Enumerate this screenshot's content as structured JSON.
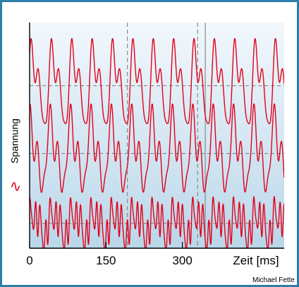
{
  "chart_data": {
    "type": "line",
    "title": "",
    "xlabel": "Zeit [ms]",
    "ylabel": "Spannung",
    "xlim": [
      0,
      500
    ],
    "x_ticks": [
      0,
      150,
      300
    ],
    "x_tick_labels": [
      "0",
      "150",
      "300"
    ],
    "grid": false,
    "legend": "none",
    "markers": {
      "dashed_x": [
        192,
        330
      ],
      "solid_x": [
        345
      ]
    },
    "series": [
      {
        "baseline": 0.72,
        "amplitude": 0.22,
        "components": [
          {
            "period_ms": 40,
            "amp": 0.65,
            "phase": 0.4
          },
          {
            "period_ms": 20,
            "amp": 0.35,
            "phase": 1.3
          },
          {
            "period_ms": 13.33,
            "amp": 0.18,
            "phase": 0.2
          }
        ],
        "x": [
          0,
          20,
          40,
          60,
          80,
          100,
          120,
          140,
          160,
          180,
          200,
          220,
          240,
          260,
          280,
          300,
          320,
          340,
          360,
          380,
          400,
          420,
          440,
          460,
          480,
          500
        ],
        "values": [
          0.78,
          0.63,
          0.92,
          0.55,
          0.86,
          0.6,
          0.94,
          0.56,
          0.88,
          0.61,
          0.93,
          0.58,
          0.87,
          0.62,
          0.92,
          0.57,
          0.86,
          0.6,
          0.93,
          0.58,
          0.88,
          0.62,
          0.92,
          0.57,
          0.86,
          0.66
        ]
      },
      {
        "baseline": 0.42,
        "amplitude": 0.22,
        "components": [
          {
            "period_ms": 40,
            "amp": 0.6,
            "phase": 1.1
          },
          {
            "period_ms": 20,
            "amp": 0.3,
            "phase": 2.2
          },
          {
            "period_ms": 13.33,
            "amp": 0.25,
            "phase": 0.9
          }
        ],
        "x": [
          0,
          20,
          40,
          60,
          80,
          100,
          120,
          140,
          160,
          180,
          200,
          220,
          240,
          260,
          280,
          300,
          320,
          340,
          360,
          380,
          400,
          420,
          440,
          460,
          480,
          500
        ],
        "values": [
          0.45,
          0.3,
          0.58,
          0.26,
          0.55,
          0.32,
          0.6,
          0.28,
          0.54,
          0.31,
          0.6,
          0.27,
          0.56,
          0.33,
          0.59,
          0.28,
          0.55,
          0.3,
          0.6,
          0.27,
          0.56,
          0.33,
          0.58,
          0.28,
          0.54,
          0.4
        ]
      },
      {
        "baseline": 0.11,
        "amplitude": 0.14,
        "components": [
          {
            "period_ms": 40,
            "amp": 0.35,
            "phase": 0.3
          },
          {
            "period_ms": 20,
            "amp": 0.25,
            "phase": 1.7
          },
          {
            "period_ms": 10,
            "amp": 0.45,
            "phase": 0.8
          },
          {
            "period_ms": 6.67,
            "amp": 0.2,
            "phase": 2.5
          }
        ],
        "x": [
          0,
          20,
          40,
          60,
          80,
          100,
          120,
          140,
          160,
          180,
          200,
          220,
          240,
          260,
          280,
          300,
          320,
          340,
          360,
          380,
          400,
          420,
          440,
          460,
          480,
          500
        ],
        "values": [
          0.12,
          0.02,
          0.2,
          0.05,
          0.18,
          0.03,
          0.21,
          0.06,
          0.17,
          0.02,
          0.2,
          0.04,
          0.18,
          0.06,
          0.2,
          0.03,
          0.17,
          0.05,
          0.21,
          0.02,
          0.19,
          0.05,
          0.2,
          0.03,
          0.17,
          0.06
        ]
      }
    ]
  },
  "colors": {
    "page_border": "#2e7eaa",
    "page_bg": "#ffffff",
    "plot_top": "#f2f8fc",
    "plot_bottom": "#b9d7ea",
    "signal": "#e3001b",
    "axis": "#000000",
    "dashed": "#777777",
    "marker": "#8a8a8a"
  },
  "credit": "Michael Fette",
  "ylabel_icon": "signal-wave-icon"
}
